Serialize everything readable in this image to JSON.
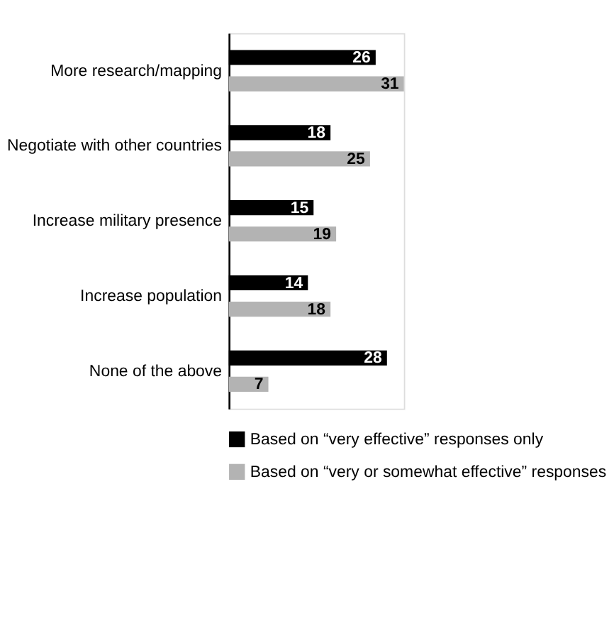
{
  "chart_data": {
    "type": "bar",
    "orientation": "horizontal",
    "categories": [
      "More research/mapping",
      "Negotiate with other countries",
      "Increase military presence",
      "Increase population",
      "None of the above"
    ],
    "series": [
      {
        "name": "Based on “very effective” responses only",
        "color": "#000000",
        "values": [
          26,
          18,
          15,
          14,
          28
        ]
      },
      {
        "name": "Based on “very or somewhat effective” responses",
        "color": "#b3b3b3",
        "values": [
          31,
          25,
          19,
          18,
          7
        ]
      }
    ],
    "data_labels": true,
    "legend": "bottom",
    "grid": false
  }
}
